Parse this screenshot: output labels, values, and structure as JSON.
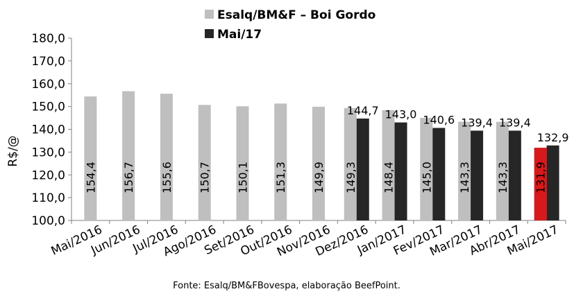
{
  "chart_data": {
    "type": "bar",
    "title": "",
    "ylabel": "R$/@",
    "xlabel": "",
    "ylim": [
      100,
      180
    ],
    "yticks": [
      "100,0",
      "110,0",
      "120,0",
      "130,0",
      "140,0",
      "150,0",
      "160,0",
      "170,0",
      "180,0"
    ],
    "categories": [
      "Mai/2016",
      "Jun/2016",
      "Jul/2016",
      "Ago/2016",
      "Set/2016",
      "Out/2016",
      "Nov/2016",
      "Dez/2016",
      "Jan/2017",
      "Fev/2017",
      "Mar/2017",
      "Abr/2017",
      "Mai/2017"
    ],
    "series": [
      {
        "name": "Esalq/BM&F – Boi Gordo",
        "color": "#bfbfbf",
        "highlight_color": "#d7191c",
        "highlight_index": 12,
        "values": [
          154.4,
          156.7,
          155.6,
          150.7,
          150.1,
          151.3,
          149.9,
          149.3,
          148.4,
          145.0,
          143.3,
          143.3,
          131.9
        ],
        "labels": [
          "154,4",
          "156,7",
          "155,6",
          "150,7",
          "150,1",
          "151,3",
          "149,9",
          "149,3",
          "148,4",
          "145,0",
          "143,3",
          "143,3",
          "131,9"
        ]
      },
      {
        "name": "Mai/17",
        "color": "#262626",
        "start_index": 7,
        "values": [
          null,
          null,
          null,
          null,
          null,
          null,
          null,
          144.7,
          143.0,
          140.6,
          139.4,
          139.4,
          132.9
        ],
        "labels": [
          null,
          null,
          null,
          null,
          null,
          null,
          null,
          "144,7",
          "143,0",
          "140,6",
          "139,4",
          "139,4",
          "132,9"
        ]
      }
    ],
    "grid": false,
    "legend_position": "top-center",
    "source": "Fonte: Esalq/BM&FBovespa, elaboração BeefPoint."
  }
}
